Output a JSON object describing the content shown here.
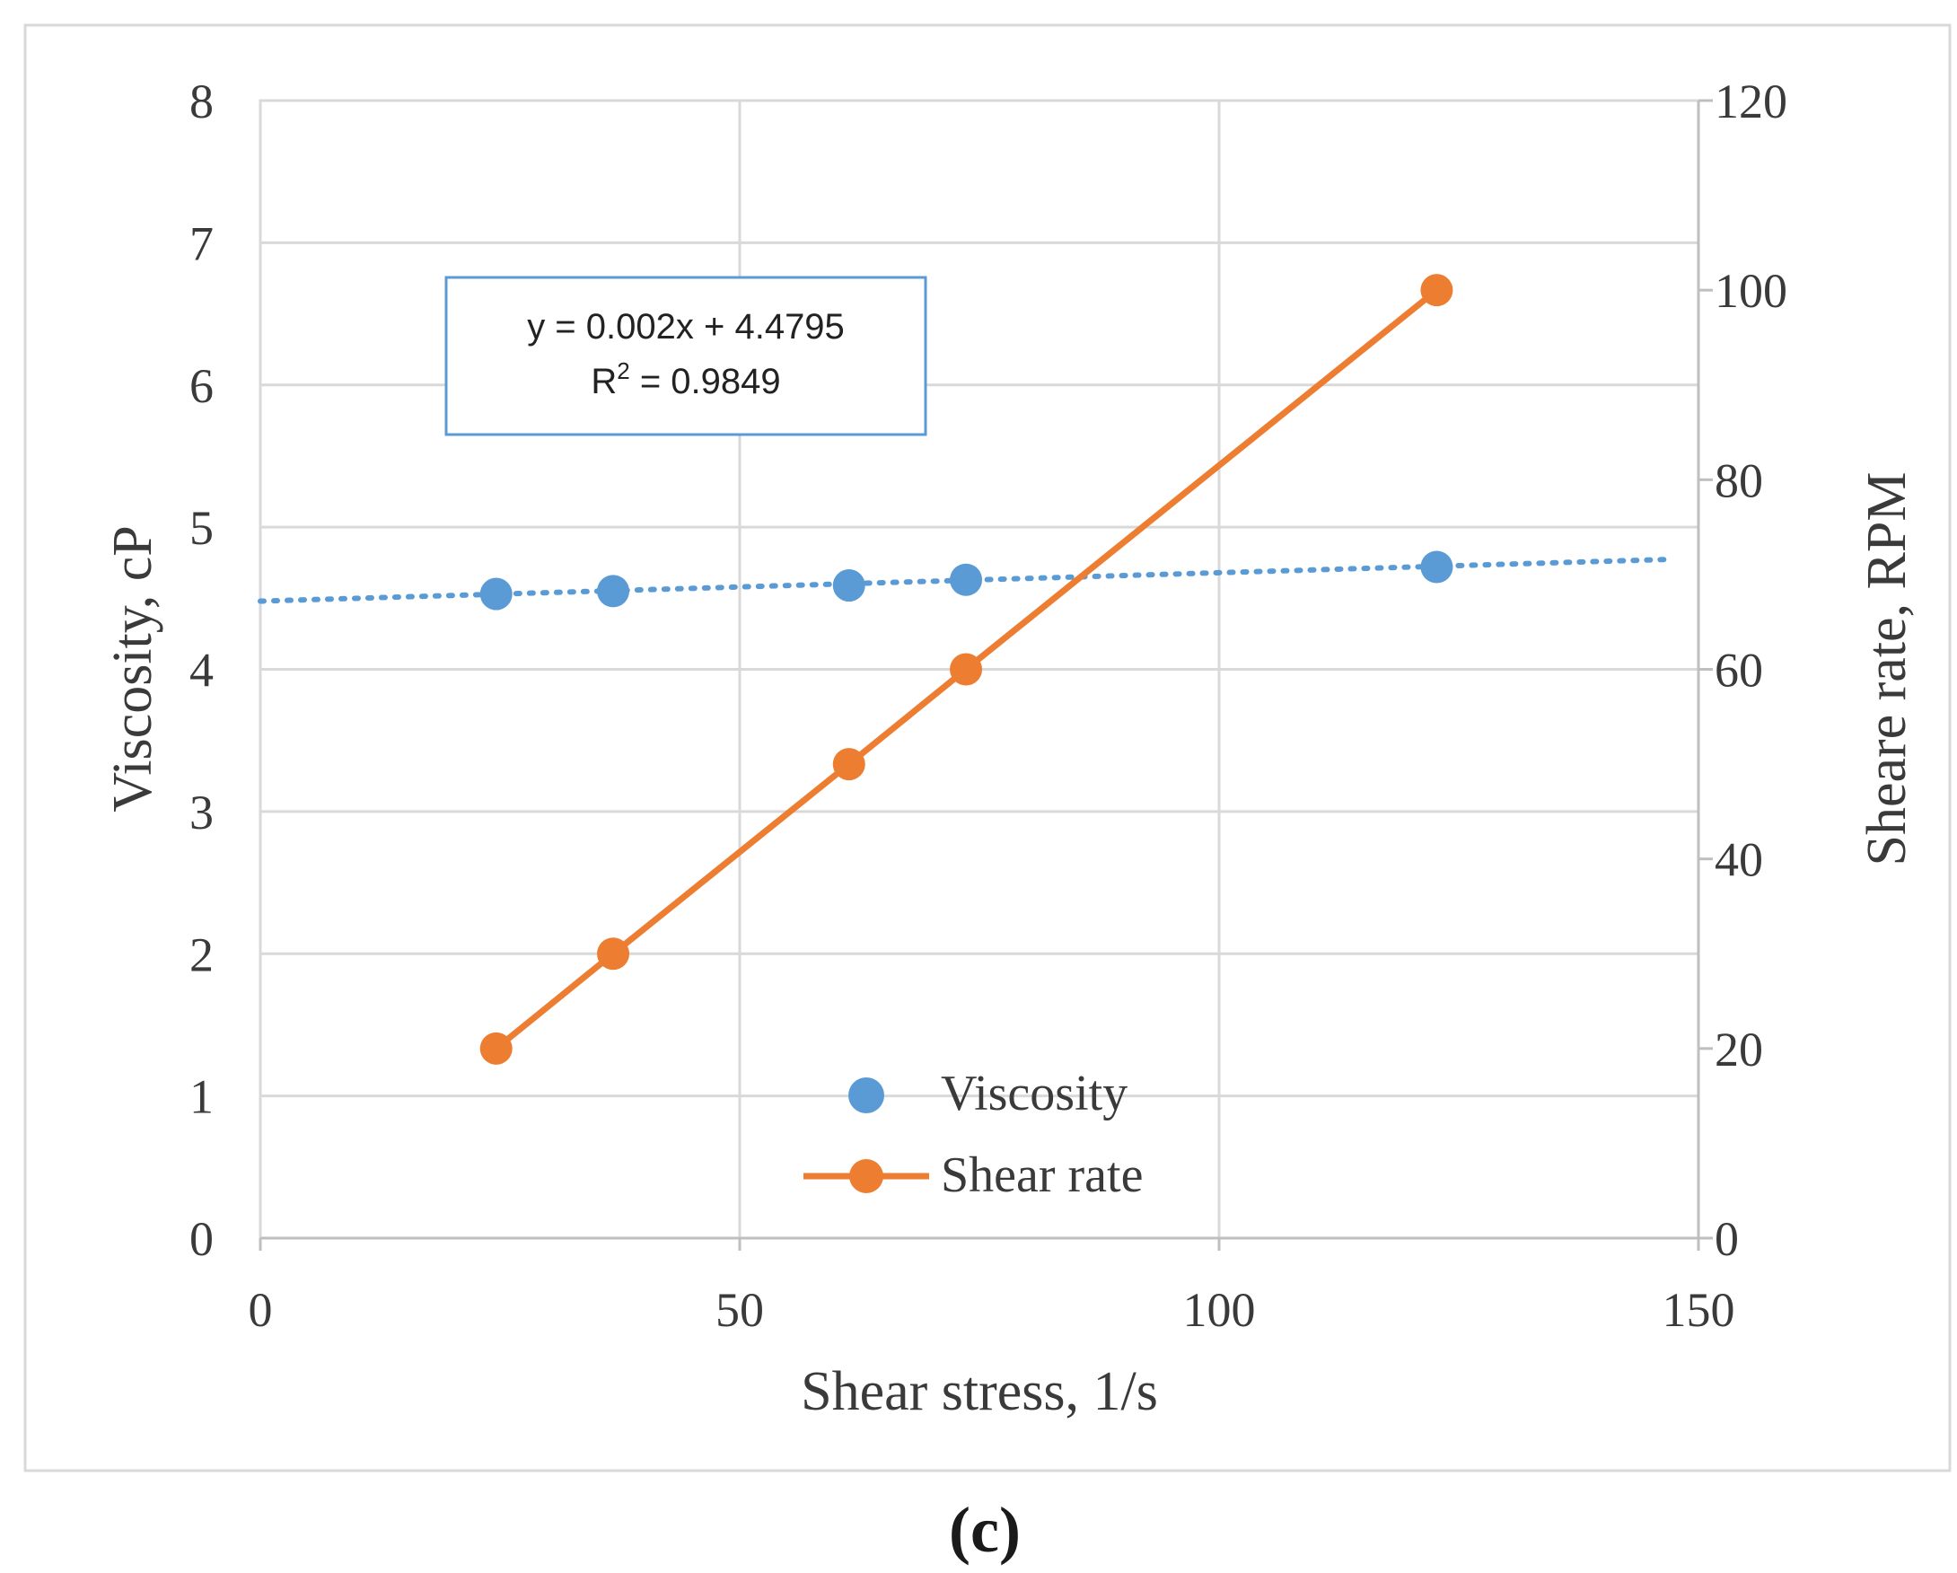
{
  "chart_data": {
    "type": "scatter",
    "xlabel": "Shear stress, 1/s",
    "ylabel": "Viscosity, cP",
    "y2label": "Sheare rate, RPM",
    "xlim": [
      0,
      150
    ],
    "ylim": [
      0,
      8
    ],
    "y2lim": [
      0,
      120
    ],
    "xticks": [
      "0",
      "50",
      "100",
      "150"
    ],
    "yticks": [
      "0",
      "1",
      "2",
      "3",
      "4",
      "5",
      "6",
      "7",
      "8"
    ],
    "y2ticks": [
      "0",
      "20",
      "40",
      "60",
      "80",
      "100",
      "120"
    ],
    "grid": true,
    "legend_position": "bottom-center",
    "series": [
      {
        "name": "Viscosity",
        "axis": "left",
        "style": "markers",
        "color": "#5B9BD5",
        "x": [
          24.6,
          36.8,
          61.4,
          73.6,
          122.7
        ],
        "y": [
          4.53,
          4.55,
          4.59,
          4.63,
          4.72
        ]
      },
      {
        "name": "Shear rate",
        "axis": "right",
        "style": "line-markers",
        "color": "#ED7D31",
        "x": [
          24.6,
          36.8,
          61.4,
          73.6,
          122.7
        ],
        "y": [
          20,
          30,
          50,
          60,
          100
        ]
      }
    ],
    "trendline": {
      "series": "Viscosity",
      "slope": 0.002,
      "intercept": 4.4795,
      "x_range": [
        0,
        147
      ],
      "color": "#5B9BD5",
      "equation_text": "y = 0.002x + 4.4795",
      "r2_label": "R",
      "r2_exponent": "2",
      "r2_value_text": " = 0.9849"
    }
  },
  "caption": "(c)"
}
